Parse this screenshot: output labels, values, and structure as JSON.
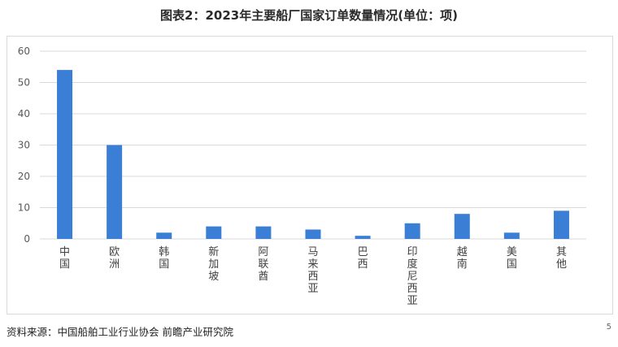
{
  "title": "图表2：2023年主要船厂国家订单数量情况(单位：项)",
  "source": "资料来源：中国船舶工业行业协会 前瞻产业研究院",
  "page_mark": "5",
  "colors": {
    "bar": "#3a7fd5",
    "grid": "#d9d9d9",
    "axis_text": "#595959"
  },
  "chart_data": {
    "type": "bar",
    "title": "图表2：2023年主要船厂国家订单数量情况(单位：项)",
    "xlabel": "",
    "ylabel": "",
    "ylim": [
      0,
      60
    ],
    "yticks": [
      0,
      10,
      20,
      30,
      40,
      50,
      60
    ],
    "grid": true,
    "legend": "none",
    "categories": [
      "中国",
      "欧洲",
      "韩国",
      "新加坡",
      "阿联酋",
      "马来西亚",
      "巴西",
      "印度尼西亚",
      "越南",
      "美国",
      "其他"
    ],
    "values": [
      54,
      30,
      2,
      4,
      4,
      3,
      1,
      5,
      8,
      2,
      9
    ]
  }
}
